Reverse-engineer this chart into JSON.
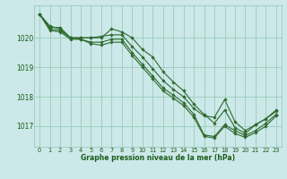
{
  "background_color": "#cce8e8",
  "grid_color": "#99ccbb",
  "line_color": "#2d6a2d",
  "marker_color": "#2d6a2d",
  "xlabel": "Graphe pression niveau de la mer (hPa)",
  "xlabel_color": "#1a5c1a",
  "ylabel_color": "#1a5c1a",
  "xlim": [
    -0.5,
    23.5
  ],
  "ylim": [
    1016.3,
    1021.1
  ],
  "yticks": [
    1017,
    1018,
    1019,
    1020
  ],
  "xticks": [
    0,
    1,
    2,
    3,
    4,
    5,
    6,
    7,
    8,
    9,
    10,
    11,
    12,
    13,
    14,
    15,
    16,
    17,
    18,
    19,
    20,
    21,
    22,
    23
  ],
  "series": [
    [
      1020.8,
      1020.4,
      1020.3,
      1020.0,
      1020.0,
      1020.0,
      1020.0,
      1020.3,
      1020.2,
      1020.0,
      1019.6,
      1019.35,
      1018.85,
      1018.5,
      1018.2,
      1017.75,
      1017.4,
      1017.1,
      1017.55,
      1016.95,
      1016.75,
      1017.05,
      1017.25,
      1017.5
    ],
    [
      1020.8,
      1020.35,
      1020.35,
      1020.0,
      1020.0,
      1020.0,
      1020.05,
      1020.1,
      1020.1,
      1019.7,
      1019.35,
      1018.95,
      1018.55,
      1018.25,
      1018.0,
      1017.6,
      1017.35,
      1017.3,
      1017.9,
      1017.15,
      1016.85,
      1017.05,
      1017.25,
      1017.55
    ],
    [
      1020.8,
      1020.3,
      1020.25,
      1020.0,
      1019.95,
      1019.85,
      1019.85,
      1019.95,
      1019.95,
      1019.5,
      1019.1,
      1018.7,
      1018.3,
      1018.05,
      1017.8,
      1017.4,
      1016.7,
      1016.65,
      1017.05,
      1016.85,
      1016.68,
      1016.85,
      1017.1,
      1017.4
    ],
    [
      1020.8,
      1020.25,
      1020.2,
      1019.95,
      1019.95,
      1019.8,
      1019.75,
      1019.85,
      1019.85,
      1019.4,
      1019.0,
      1018.6,
      1018.2,
      1017.95,
      1017.7,
      1017.3,
      1016.65,
      1016.6,
      1017.0,
      1016.75,
      1016.62,
      1016.78,
      1017.0,
      1017.35
    ]
  ]
}
